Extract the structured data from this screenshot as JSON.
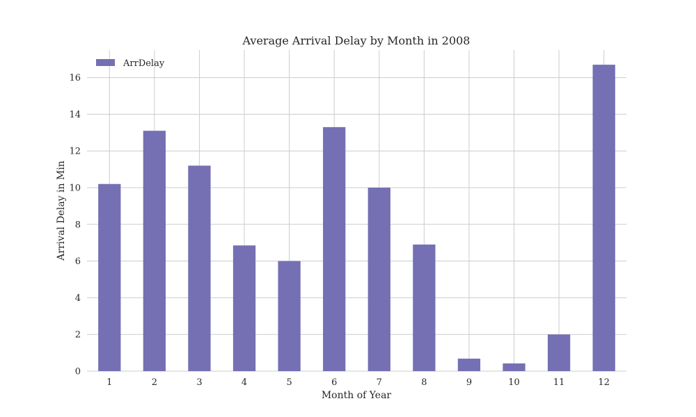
{
  "chart_data": {
    "type": "bar",
    "title": "Average Arrival Delay by Month in 2008",
    "xlabel": "Month of Year",
    "ylabel": "Arrival Delay in Min",
    "categories": [
      "1",
      "2",
      "3",
      "4",
      "5",
      "6",
      "7",
      "8",
      "9",
      "10",
      "11",
      "12"
    ],
    "series": [
      {
        "name": "ArrDelay",
        "values": [
          10.2,
          13.1,
          11.2,
          6.85,
          6.0,
          13.3,
          10.0,
          6.9,
          0.68,
          0.42,
          2.0,
          16.7
        ],
        "color": "#7570b3"
      }
    ],
    "yticks": [
      0,
      2,
      4,
      6,
      8,
      10,
      12,
      14,
      16
    ],
    "ylim": [
      0,
      17.5
    ],
    "grid": true,
    "legend_position": "top-left"
  }
}
